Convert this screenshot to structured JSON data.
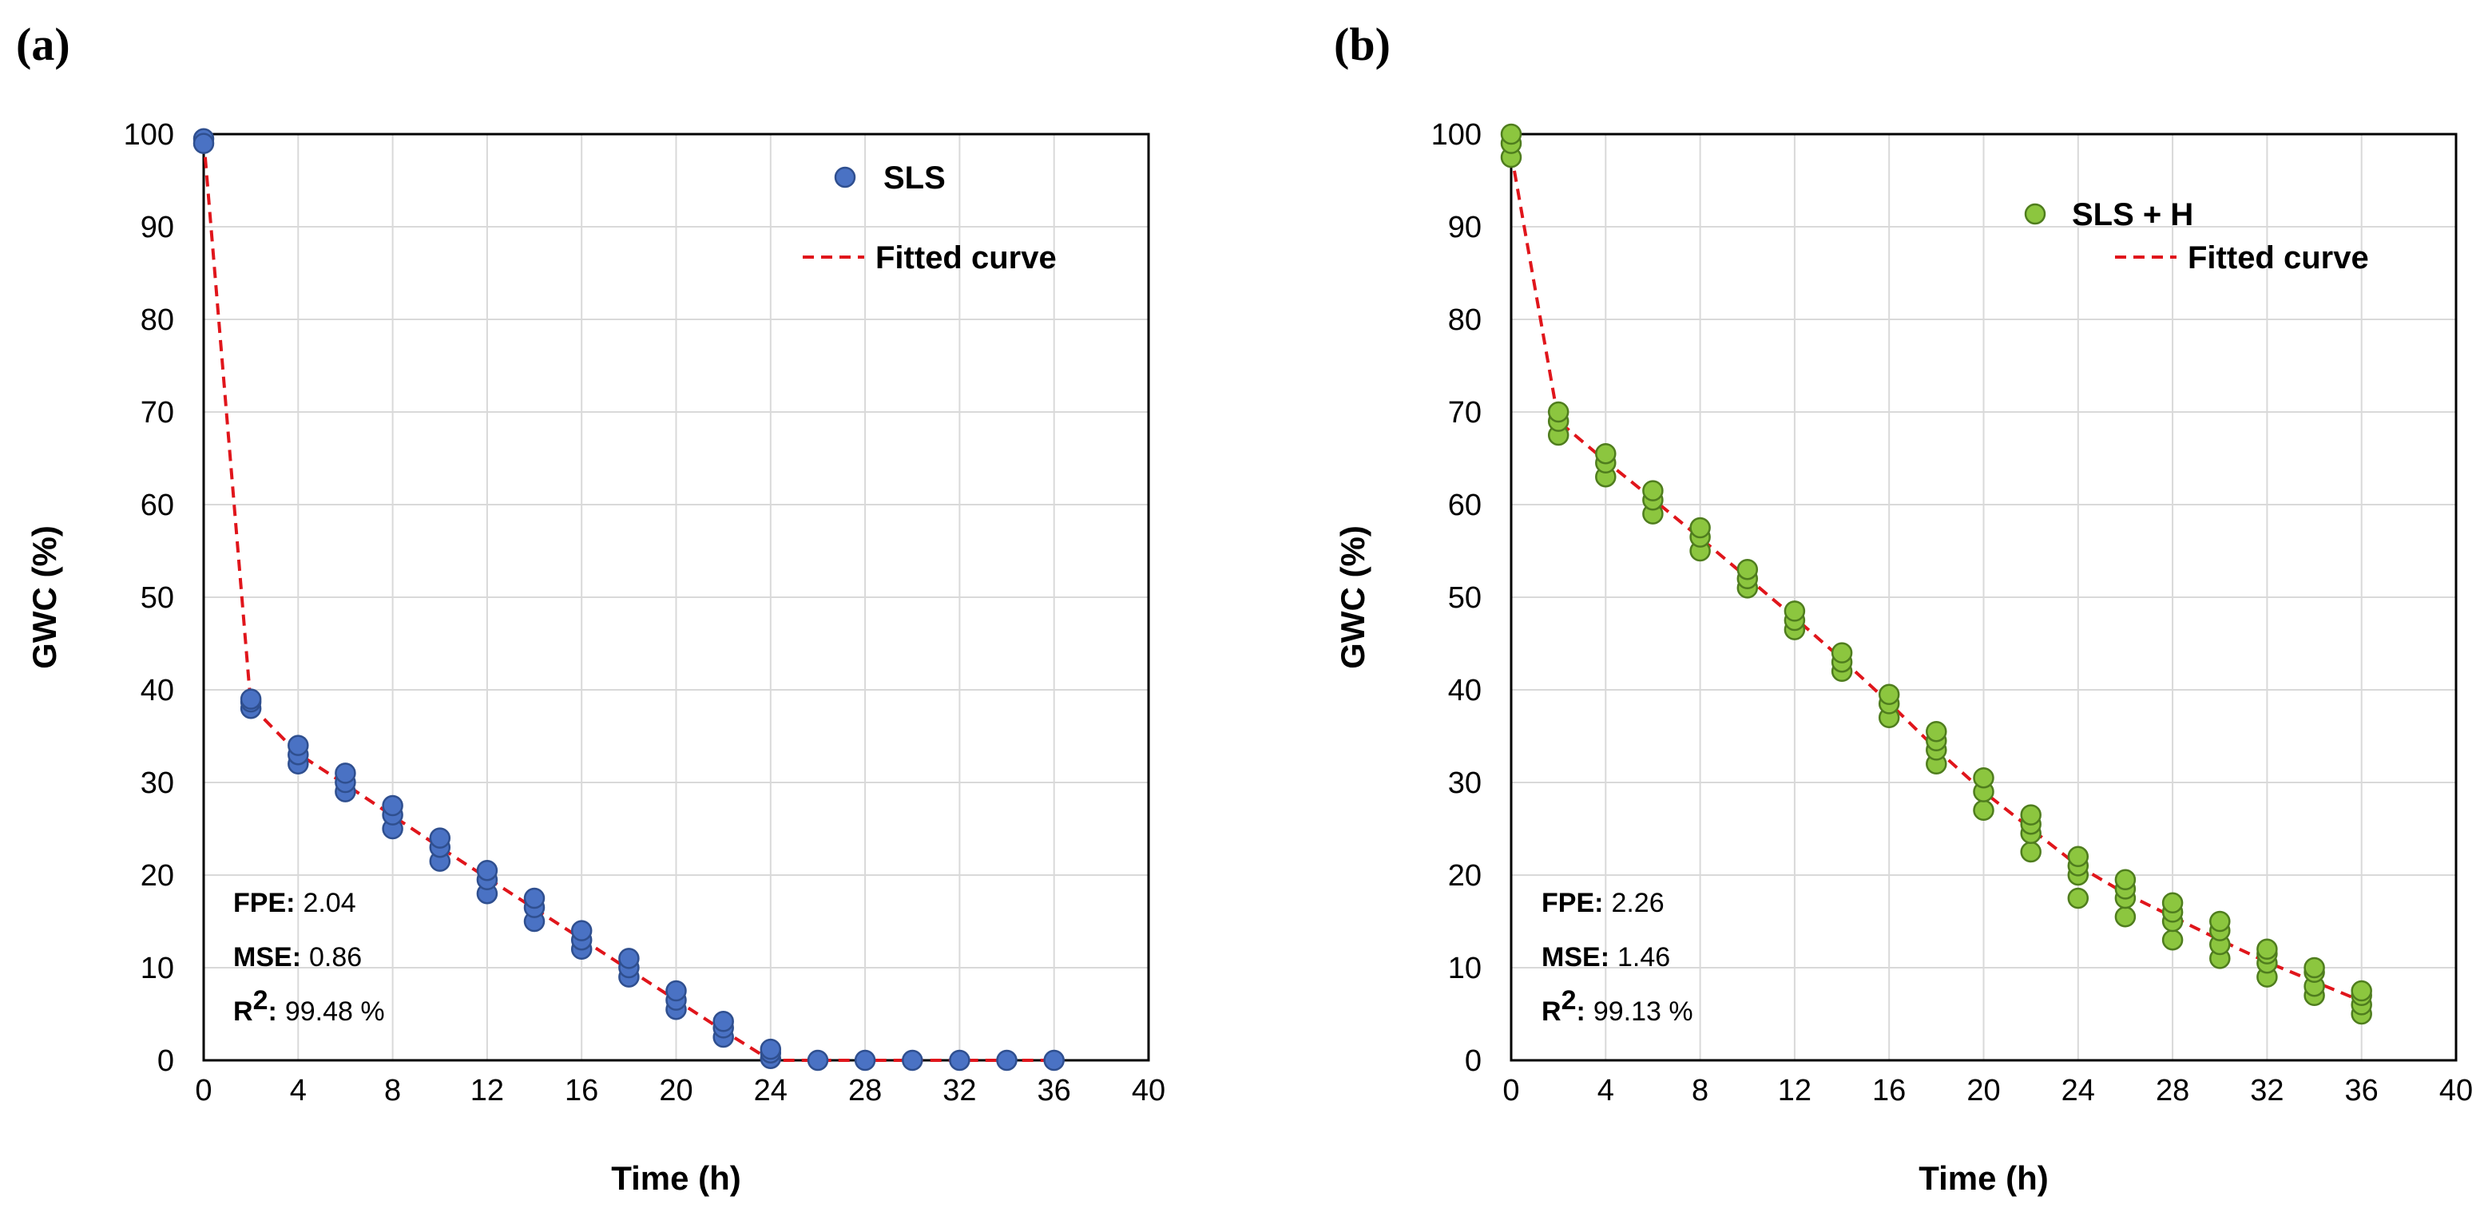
{
  "chart_data": [
    {
      "type": "scatter",
      "panel_label": "(a)",
      "xlabel": "Time (h)",
      "ylabel": "GWC (%)",
      "xlim": [
        0,
        40
      ],
      "ylim": [
        0,
        100
      ],
      "xticks": [
        0,
        4,
        8,
        12,
        16,
        20,
        24,
        28,
        32,
        36,
        40
      ],
      "yticks": [
        0,
        10,
        20,
        30,
        40,
        50,
        60,
        70,
        80,
        90,
        100
      ],
      "grid": true,
      "legend_position": "top-right",
      "series": [
        {
          "name": "SLS",
          "kind": "points",
          "color": "#4a72c4",
          "edge_color": "#2f4f8f",
          "points": [
            [
              0,
              99.5
            ],
            [
              0,
              99.0
            ],
            [
              2,
              38.0
            ],
            [
              2,
              38.7
            ],
            [
              2,
              39.0
            ],
            [
              4,
              32.0
            ],
            [
              4,
              33.0
            ],
            [
              4,
              34.0
            ],
            [
              6,
              29.0
            ],
            [
              6,
              30.0
            ],
            [
              6,
              31.0
            ],
            [
              8,
              25.0
            ],
            [
              8,
              26.5
            ],
            [
              8,
              27.5
            ],
            [
              10,
              21.5
            ],
            [
              10,
              23.0
            ],
            [
              10,
              24.0
            ],
            [
              12,
              18.0
            ],
            [
              12,
              19.5
            ],
            [
              12,
              20.5
            ],
            [
              14,
              15.0
            ],
            [
              14,
              16.5
            ],
            [
              14,
              17.5
            ],
            [
              16,
              12.0
            ],
            [
              16,
              13.0
            ],
            [
              16,
              14.0
            ],
            [
              18,
              9.0
            ],
            [
              18,
              10.0
            ],
            [
              18,
              11.0
            ],
            [
              20,
              5.5
            ],
            [
              20,
              6.5
            ],
            [
              20,
              7.5
            ],
            [
              22,
              2.5
            ],
            [
              22,
              3.5
            ],
            [
              22,
              4.2
            ],
            [
              24,
              0.2
            ],
            [
              24,
              0.8
            ],
            [
              24,
              1.2
            ],
            [
              26,
              0
            ],
            [
              28,
              0
            ],
            [
              30,
              0
            ],
            [
              32,
              0
            ],
            [
              34,
              0
            ],
            [
              36,
              0
            ]
          ]
        },
        {
          "name": "Fitted curve",
          "kind": "line",
          "color": "#e0151b",
          "x": [
            0,
            2,
            4,
            6,
            8,
            10,
            12,
            14,
            16,
            18,
            20,
            22,
            24,
            26,
            28,
            30,
            32,
            34,
            36
          ],
          "y": [
            99.5,
            38.3,
            33.1,
            29.8,
            26.4,
            23.0,
            19.7,
            16.4,
            13.1,
            9.8,
            6.5,
            3.2,
            0,
            0,
            0,
            0,
            0,
            0,
            0
          ]
        }
      ],
      "stats": [
        {
          "label": "FPE",
          "value": "2.04"
        },
        {
          "label": "MSE",
          "value": "0.86"
        },
        {
          "label": "R",
          "sup": "2",
          "value": "99.48 %"
        }
      ]
    },
    {
      "type": "scatter",
      "panel_label": "(b)",
      "xlabel": "Time (h)",
      "ylabel": "GWC (%)",
      "xlim": [
        0,
        40
      ],
      "ylim": [
        0,
        100
      ],
      "xticks": [
        0,
        4,
        8,
        12,
        16,
        20,
        24,
        28,
        32,
        36,
        40
      ],
      "yticks": [
        0,
        10,
        20,
        30,
        40,
        50,
        60,
        70,
        80,
        90,
        100
      ],
      "grid": true,
      "legend_position": "top-right",
      "series": [
        {
          "name": "SLS + H",
          "kind": "points",
          "color": "#8cc63f",
          "edge_color": "#4f7d1e",
          "points": [
            [
              0,
              97.5
            ],
            [
              0,
              99.0
            ],
            [
              0,
              100.0
            ],
            [
              2,
              67.5
            ],
            [
              2,
              69.0
            ],
            [
              2,
              70.0
            ],
            [
              4,
              63.0
            ],
            [
              4,
              64.5
            ],
            [
              4,
              65.5
            ],
            [
              6,
              59.0
            ],
            [
              6,
              60.5
            ],
            [
              6,
              61.5
            ],
            [
              8,
              55.0
            ],
            [
              8,
              56.5
            ],
            [
              8,
              57.5
            ],
            [
              10,
              51.0
            ],
            [
              10,
              52.0
            ],
            [
              10,
              53.0
            ],
            [
              12,
              46.5
            ],
            [
              12,
              47.5
            ],
            [
              12,
              48.5
            ],
            [
              14,
              42.0
            ],
            [
              14,
              43.0
            ],
            [
              14,
              44.0
            ],
            [
              16,
              37.0
            ],
            [
              16,
              38.5
            ],
            [
              16,
              39.5
            ],
            [
              18,
              32.0
            ],
            [
              18,
              33.5
            ],
            [
              18,
              34.5
            ],
            [
              18,
              35.5
            ],
            [
              20,
              27.0
            ],
            [
              20,
              29.0
            ],
            [
              20,
              30.5
            ],
            [
              22,
              22.5
            ],
            [
              22,
              24.5
            ],
            [
              22,
              25.5
            ],
            [
              22,
              26.5
            ],
            [
              24,
              17.5
            ],
            [
              24,
              20.0
            ],
            [
              24,
              21.0
            ],
            [
              24,
              22.0
            ],
            [
              26,
              15.5
            ],
            [
              26,
              17.5
            ],
            [
              26,
              18.5
            ],
            [
              26,
              19.5
            ],
            [
              28,
              13.0
            ],
            [
              28,
              15.0
            ],
            [
              28,
              16.0
            ],
            [
              28,
              17.0
            ],
            [
              30,
              11.0
            ],
            [
              30,
              12.5
            ],
            [
              30,
              14.0
            ],
            [
              30,
              15.0
            ],
            [
              32,
              9.0
            ],
            [
              32,
              10.5
            ],
            [
              32,
              11.5
            ],
            [
              32,
              12.0
            ],
            [
              34,
              7.0
            ],
            [
              34,
              8.0
            ],
            [
              34,
              9.5
            ],
            [
              34,
              10.0
            ],
            [
              36,
              5.0
            ],
            [
              36,
              6.0
            ],
            [
              36,
              7.0
            ],
            [
              36,
              7.5
            ]
          ]
        },
        {
          "name": "Fitted curve",
          "kind": "line",
          "color": "#e0151b",
          "x": [
            0,
            2,
            4,
            6,
            8,
            10,
            12,
            14,
            16,
            18,
            20,
            22,
            24,
            26,
            28,
            30,
            32,
            34,
            36
          ],
          "y": [
            98.0,
            69.0,
            64.7,
            60.6,
            56.4,
            52.1,
            47.8,
            43.3,
            38.6,
            33.6,
            29.0,
            25.0,
            21.0,
            18.0,
            15.5,
            13.0,
            10.6,
            8.5,
            6.4
          ]
        }
      ],
      "stats": [
        {
          "label": "FPE",
          "value": "2.26"
        },
        {
          "label": "MSE",
          "value": "1.46"
        },
        {
          "label": "R",
          "sup": "2",
          "value": "99.13 %"
        }
      ]
    }
  ]
}
